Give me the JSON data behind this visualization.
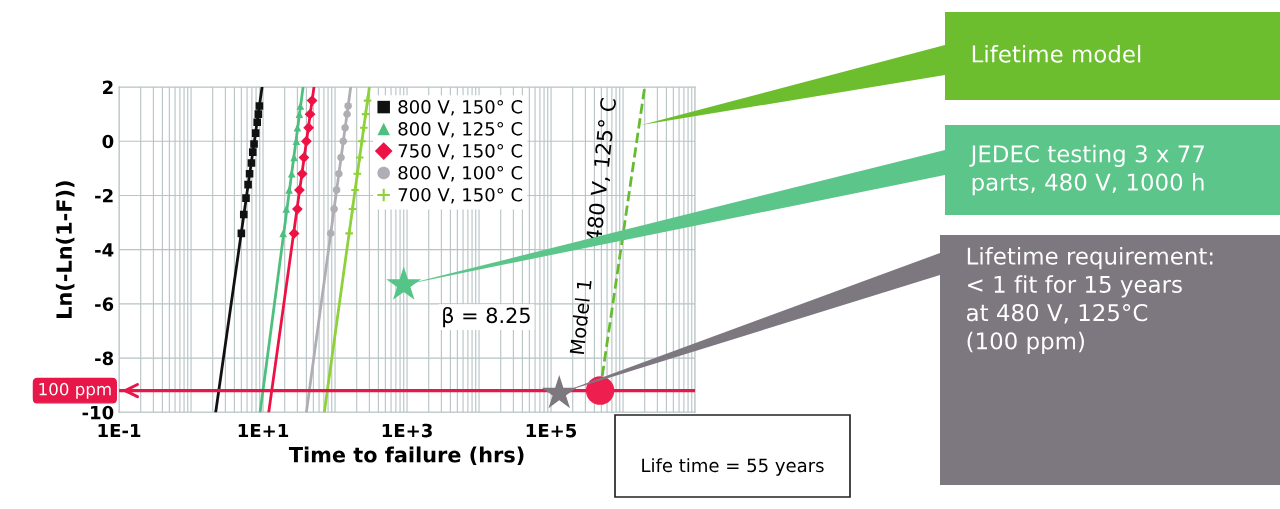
{
  "chart_data": {
    "type": "scatter",
    "xlabel": "Time to failure (hrs)",
    "ylabel": "Ln(-Ln(1-F))",
    "log": "x",
    "xlim": [
      0.1,
      10000000
    ],
    "xticks": [
      {
        "value": 0.1,
        "label": "1E-1"
      },
      {
        "value": 1,
        "label": null
      },
      {
        "value": 10,
        "label": "1E+1"
      },
      {
        "value": 100,
        "label": null
      },
      {
        "value": 1000,
        "label": "1E+3"
      },
      {
        "value": 10000,
        "label": null
      },
      {
        "value": 100000,
        "label": "1E+5"
      },
      {
        "value": 1000000,
        "label": null
      },
      {
        "value": 10000000,
        "label": null
      }
    ],
    "ylim": [
      -10,
      2
    ],
    "yticks": [
      -10,
      -8,
      -6,
      -4,
      -2,
      0,
      2
    ],
    "grid": true,
    "legend": "top",
    "series": [
      {
        "name": "800 V, 150° C",
        "marker": "square",
        "color": "#111111",
        "x": [
          5.0,
          5.4,
          5.8,
          6.2,
          6.5,
          6.9,
          7.2,
          7.5,
          7.9,
          8.3,
          8.6,
          8.9
        ],
        "values": [
          -3.4,
          -2.7,
          -2.1,
          -1.6,
          -1.2,
          -0.8,
          -0.4,
          -0.1,
          0.3,
          0.7,
          1.0,
          1.3
        ]
      },
      {
        "name": "800 V, 125° C",
        "marker": "triangle",
        "color": "#4dbf7f",
        "x": [
          19,
          21,
          23,
          25,
          27,
          29,
          30,
          32,
          33
        ],
        "values": [
          -3.4,
          -2.5,
          -1.8,
          -1.2,
          -0.6,
          0,
          0.5,
          1.0,
          1.3
        ]
      },
      {
        "name": "750 V, 150° C",
        "marker": "diamond",
        "color": "#ee1144",
        "x": [
          27,
          30,
          32,
          35,
          37,
          40,
          43,
          45,
          48
        ],
        "values": [
          -3.4,
          -2.5,
          -1.8,
          -1.2,
          -0.6,
          0,
          0.5,
          1.0,
          1.5
        ]
      },
      {
        "name": "800 V, 100° C",
        "marker": "circle",
        "color": "#b0aeb5",
        "x": [
          87,
          97,
          105,
          113,
          121,
          130,
          138,
          147,
          152
        ],
        "values": [
          -3.4,
          -2.5,
          -1.8,
          -1.2,
          -0.6,
          0,
          0.5,
          1.0,
          1.3
        ]
      },
      {
        "name": "700 V, 150° C",
        "marker": "cross",
        "color": "#8ed13b",
        "x": [
          157,
          175,
          190,
          204,
          220,
          236,
          251,
          266,
          283
        ],
        "values": [
          -3.4,
          -2.5,
          -1.8,
          -1.2,
          -0.6,
          0,
          0.5,
          1.0,
          1.5
        ]
      },
      {
        "type": "line",
        "color": "#111111",
        "x": [
          2.2,
          9.7
        ],
        "values": [
          -10,
          2
        ]
      },
      {
        "type": "line",
        "color": "#4dbf7f",
        "x": [
          9.1,
          36
        ],
        "values": [
          -10,
          2
        ]
      },
      {
        "type": "line",
        "color": "#ee1144",
        "x": [
          12,
          51
        ],
        "values": [
          -10,
          2
        ]
      },
      {
        "type": "line",
        "color": "#b0aeb5",
        "x": [
          40,
          165
        ],
        "values": [
          -10,
          2
        ]
      },
      {
        "type": "line",
        "color": "#8ed13b",
        "x": [
          71,
          300
        ],
        "values": [
          -10,
          2
        ]
      },
      {
        "type": "line",
        "line_style": "dashed",
        "color": "#66bb33",
        "x": [
          480000,
          2000000
        ],
        "values": [
          -9.2,
          2
        ]
      },
      {
        "marker": "star",
        "color": "#55c487",
        "x": [
          900
        ],
        "values": [
          -5.3
        ]
      },
      {
        "marker": "star",
        "color": "#7d7880",
        "x": [
          130000
        ],
        "values": [
          -9.3
        ]
      },
      {
        "marker": "circle",
        "color": "#ee1f4f",
        "x": [
          480000
        ],
        "values": [
          -9.2
        ]
      }
    ],
    "ref_lines": [
      {
        "axis": "y",
        "value": -9.2,
        "label": "100 ppm",
        "color": "#e8174a"
      }
    ],
    "annotations": [
      "β = 8.25",
      "480 V, 125° C",
      "Model 1",
      {
        "text": "Lifetime model",
        "x": 1800000,
        "y": 0.6
      },
      {
        "text": "JEDEC testing 3 x 77\nparts, 480 V, 1000 h",
        "x": 900,
        "y": -5.3
      },
      {
        "text": "Lifetime requirement:\n< 1 fit for 15 years\nat 480 V, 125°C\n(100 ppm)",
        "x": 130000,
        "y": -9.3
      },
      "Life time = 55 years"
    ]
  }
}
